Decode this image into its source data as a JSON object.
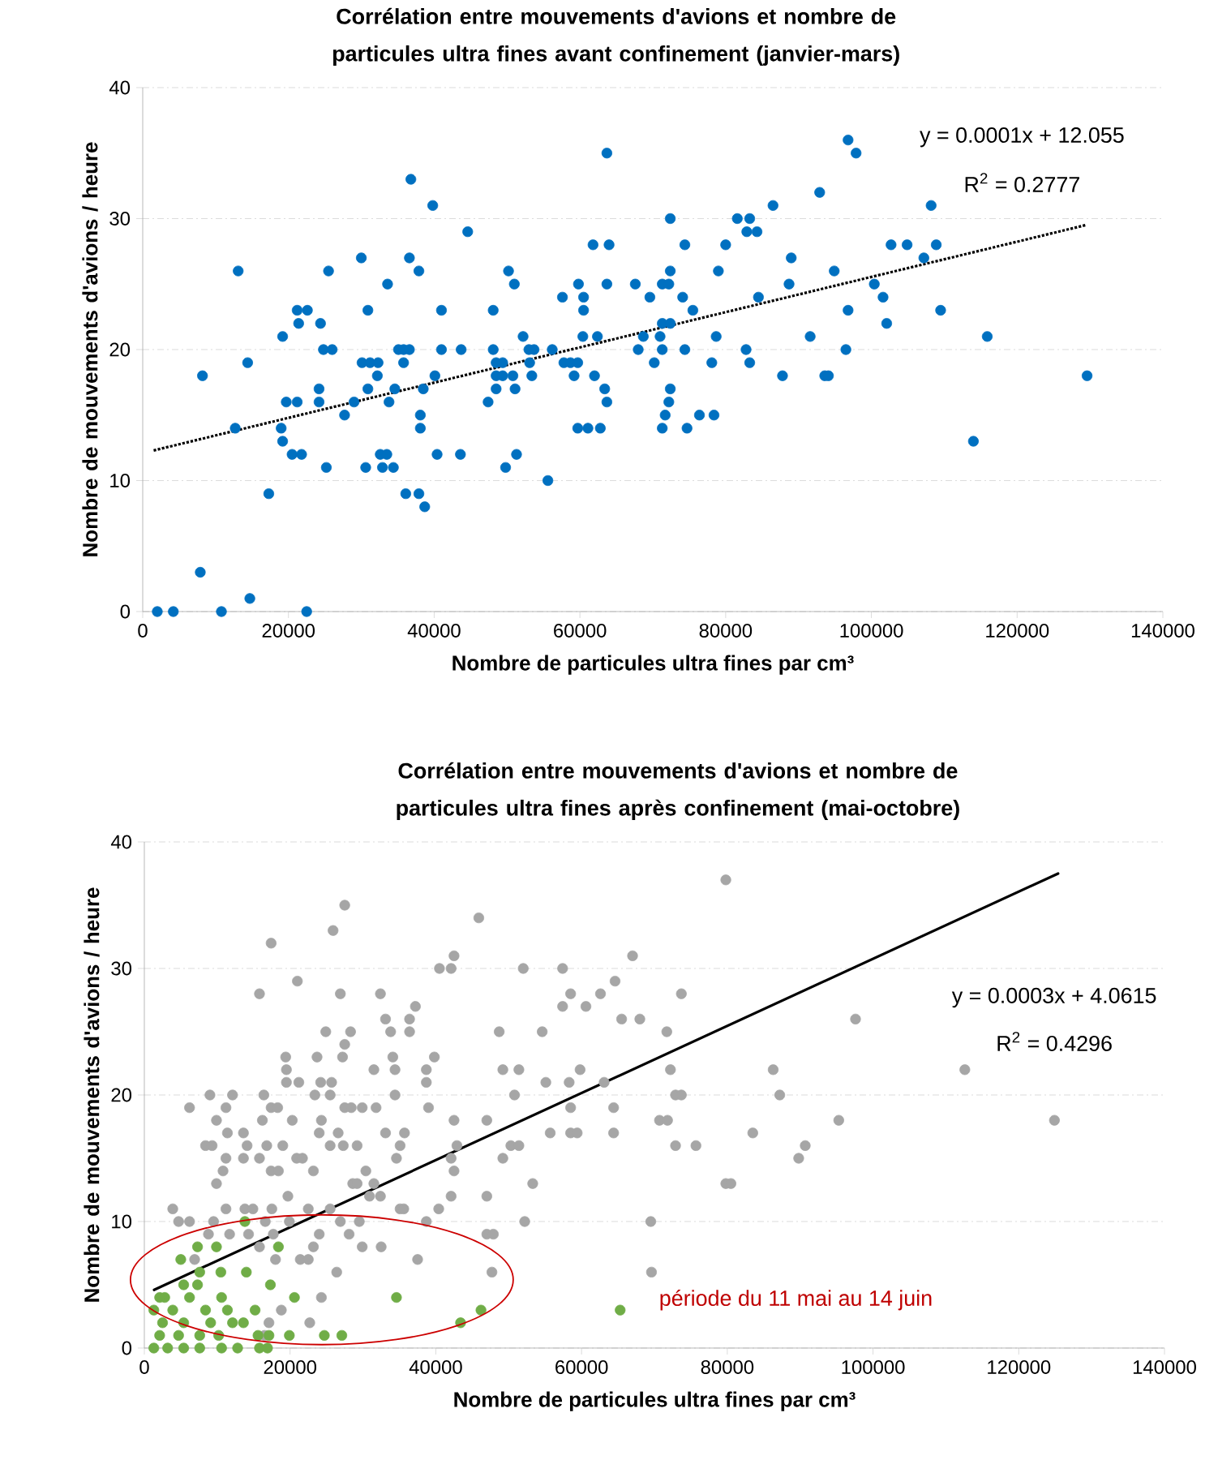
{
  "chart_data": [
    {
      "type": "scatter",
      "title": "Corrélation entre mouvements d'avions et nombre de particules ultra fines avant confinement (janvier-mars)",
      "xlabel": "Nombre de particules ultra fines par cm³",
      "ylabel": "Nombre de mouvements d'avions / heure",
      "xlim": [
        0,
        140000
      ],
      "ylim": [
        0,
        40
      ],
      "xticks": [
        0,
        20000,
        40000,
        60000,
        80000,
        100000,
        120000,
        140000
      ],
      "yticks": [
        0,
        10,
        20,
        30,
        40
      ],
      "grid": "y",
      "marker": "circle",
      "annotations": [
        "y = 0.0001x + 12.055",
        "R$^{2}$ = 0.2777"
      ],
      "series": [
        {
          "color": "#0070c0",
          "x": [
            2000,
            4200,
            7900,
            8200,
            10800,
            13100,
            12700,
            14400,
            14700,
            17300,
            19200,
            19000,
            19200,
            19700,
            21200,
            20500,
            21800,
            21200,
            22600,
            21400,
            22500,
            24400,
            24800,
            26000,
            24200,
            24200,
            25500,
            25200,
            27700,
            29000,
            30000,
            30600,
            30900,
            30100,
            31200,
            32300,
            30900,
            32200,
            33600,
            32600,
            33500,
            32900,
            34400,
            33800,
            34600,
            35100,
            35800,
            36600,
            35800,
            36100,
            37900,
            36600,
            36800,
            37900,
            38100,
            38100,
            38500,
            38700,
            39800,
            40100,
            40400,
            41000,
            41000,
            43700,
            43600,
            44600,
            47400,
            48100,
            48100,
            48500,
            49400,
            48500,
            49400,
            48500,
            49800,
            50200,
            51000,
            50800,
            51100,
            51300,
            52200,
            53000,
            53700,
            53100,
            53400,
            55600,
            56200,
            57600,
            57800,
            58700,
            59700,
            59200,
            59700,
            61100,
            62800,
            59800,
            60500,
            60500,
            60400,
            62400,
            61800,
            64000,
            63700,
            63700,
            62000,
            63400,
            63700,
            67600,
            68000,
            68700,
            69600,
            70200,
            71300,
            72200,
            71300,
            71700,
            72200,
            72400,
            72400,
            72400,
            71300,
            72400,
            71000,
            71300,
            74400,
            74400,
            74100,
            75500,
            74700,
            76400,
            78400,
            78100,
            78700,
            79000,
            80000,
            81600,
            83300,
            82900,
            84300,
            82800,
            83300,
            84500,
            86500,
            87800,
            88700,
            89000,
            91600,
            92900,
            93600,
            94100,
            94900,
            96500,
            96800,
            96800,
            97900,
            100400,
            101600,
            102100,
            102700,
            104900,
            107200,
            108200,
            108900,
            109500,
            114000,
            115900,
            129600
          ],
          "values": [
            0,
            0,
            3,
            18,
            0,
            26,
            14,
            19,
            1,
            9,
            21,
            14,
            13,
            16,
            16,
            12,
            12,
            23,
            23,
            22,
            0,
            22,
            20,
            20,
            17,
            16,
            26,
            11,
            15,
            16,
            27,
            11,
            23,
            19,
            19,
            19,
            17,
            18,
            25,
            12,
            12,
            11,
            11,
            16,
            17,
            20,
            20,
            20,
            19,
            9,
            9,
            27,
            33,
            26,
            15,
            14,
            17,
            8,
            31,
            18,
            12,
            23,
            20,
            20,
            12,
            29,
            16,
            23,
            20,
            19,
            19,
            18,
            18,
            17,
            11,
            26,
            25,
            18,
            17,
            12,
            21,
            20,
            20,
            19,
            18,
            10,
            20,
            24,
            19,
            19,
            19,
            18,
            14,
            14,
            14,
            25,
            24,
            23,
            21,
            21,
            28,
            28,
            35,
            25,
            18,
            17,
            16,
            25,
            20,
            21,
            24,
            19,
            25,
            25,
            14,
            15,
            16,
            17,
            30,
            26,
            22,
            22,
            21,
            20,
            28,
            20,
            24,
            23,
            14,
            15,
            15,
            19,
            21,
            26,
            28,
            30,
            30,
            29,
            29,
            20,
            19,
            24,
            31,
            18,
            25,
            27,
            21,
            32,
            18,
            18,
            26,
            20,
            23,
            36,
            35,
            25,
            24,
            22,
            28,
            28,
            27,
            31,
            28,
            23,
            13,
            21,
            18
          ]
        },
        {
          "type": "line",
          "color": "#000000",
          "line_style": "dotted",
          "marker": "none",
          "x": [
            1500,
            129400
          ],
          "values": [
            12.3,
            29.5
          ]
        }
      ]
    },
    {
      "type": "scatter",
      "title": "Corrélation entre mouvements d'avions et nombre de particules ultra fines après confinement (mai-octobre)",
      "xlabel": "Nombre de particules ultra fines par cm³",
      "ylabel": "Nombre de mouvements d'avions / heure",
      "xlim": [
        0,
        140000
      ],
      "ylim": [
        0,
        40
      ],
      "xticks": [
        0,
        20000,
        40000,
        60000,
        80000,
        100000,
        120000,
        140000
      ],
      "yticks": [
        0,
        10,
        20,
        30,
        40
      ],
      "grid": "y",
      "marker": "circle",
      "annotations": [
        "y = 0.0003x + 4.0615",
        "R$^{2}$ = 0.4296",
        "période du 11 mai au 14 juin"
      ],
      "series": [
        {
          "color": "#a6a6a6",
          "x": [
            27500,
            45900,
            25900,
            17400,
            42500,
            67000,
            40500,
            42100,
            52000,
            57400,
            21000,
            64600,
            15800,
            26900,
            32400,
            58500,
            62600,
            73700,
            37200,
            60600,
            57400,
            33100,
            36400,
            65500,
            68000,
            24900,
            28300,
            33800,
            36400,
            48700,
            54600,
            71700,
            27500,
            19400,
            23700,
            27200,
            34100,
            39800,
            19500,
            31500,
            34400,
            38700,
            49200,
            51400,
            59800,
            72200,
            19500,
            21200,
            24200,
            25700,
            38700,
            55100,
            58300,
            63100,
            9000,
            12100,
            16400,
            23400,
            25500,
            34400,
            50800,
            72900,
            6200,
            11200,
            17400,
            18300,
            27500,
            28400,
            29900,
            31800,
            39000,
            58500,
            64400,
            9900,
            16200,
            20300,
            24300,
            42500,
            47000,
            70700,
            71800,
            11400,
            13600,
            24000,
            26600,
            33100,
            35700,
            55700,
            58500,
            59400,
            64400,
            8400,
            9300,
            14100,
            16800,
            19000,
            25500,
            27300,
            29200,
            35100,
            42900,
            50300,
            51400,
            72900,
            11200,
            13600,
            15800,
            20900,
            21700,
            34600,
            42100,
            49200,
            10800,
            17400,
            18400,
            23200,
            30400,
            42500,
            9900,
            28600,
            29200,
            31500,
            53300,
            19700,
            30900,
            32400,
            42100,
            47000,
            3900,
            11200,
            13800,
            14900,
            17500,
            22500,
            25500,
            35100,
            35600,
            40400,
            4700,
            6200,
            9500,
            16600,
            19900,
            26900,
            29500,
            38700,
            52200,
            69500,
            8800,
            11700,
            14300,
            17700,
            24000,
            28100,
            47000,
            47900,
            15800,
            23200,
            29900,
            32500,
            6900,
            18000,
            21400,
            22500,
            37500,
            26400,
            69600,
            47700,
            24300,
            18800,
            22700,
            17100,
            16500,
            79800,
            97600,
            86300,
            112600,
            73700,
            87200,
            95300,
            124900,
            83500,
            75700,
            90700,
            89800,
            79800,
            80500
          ],
          "values": [
            35,
            34,
            33,
            32,
            31,
            31,
            30,
            30,
            30,
            30,
            29,
            29,
            28,
            28,
            28,
            28,
            28,
            28,
            27,
            27,
            27,
            26,
            26,
            26,
            26,
            25,
            25,
            25,
            25,
            25,
            25,
            25,
            24,
            23,
            23,
            23,
            23,
            23,
            22,
            22,
            22,
            22,
            22,
            22,
            22,
            22,
            21,
            21,
            21,
            21,
            21,
            21,
            21,
            21,
            20,
            20,
            20,
            20,
            20,
            20,
            20,
            20,
            19,
            19,
            19,
            19,
            19,
            19,
            19,
            19,
            19,
            19,
            19,
            18,
            18,
            18,
            18,
            18,
            18,
            18,
            18,
            17,
            17,
            17,
            17,
            17,
            17,
            17,
            17,
            17,
            17,
            16,
            16,
            16,
            16,
            16,
            16,
            16,
            16,
            16,
            16,
            16,
            16,
            16,
            15,
            15,
            15,
            15,
            15,
            15,
            15,
            15,
            14,
            14,
            14,
            14,
            14,
            14,
            13,
            13,
            13,
            13,
            13,
            12,
            12,
            12,
            12,
            12,
            11,
            11,
            11,
            11,
            11,
            11,
            11,
            11,
            11,
            11,
            10,
            10,
            10,
            10,
            10,
            10,
            10,
            10,
            10,
            10,
            9,
            9,
            9,
            9,
            9,
            9,
            9,
            9,
            8,
            8,
            8,
            8,
            7,
            7,
            7,
            7,
            7,
            6,
            6,
            6,
            4,
            3,
            2,
            2,
            1,
            37,
            26,
            22,
            22,
            20,
            20,
            18,
            18,
            17,
            16,
            16,
            15,
            13,
            13
          ]
        },
        {
          "color": "#70ad47",
          "x": [
            13800,
            18400,
            7300,
            5000,
            9900,
            10500,
            14000,
            17300,
            5400,
            7300,
            7600,
            20600,
            34600,
            2800,
            6200,
            10600,
            46200,
            15200,
            3900,
            8400,
            11400,
            43400,
            13600,
            2500,
            5400,
            9100,
            12100,
            15600,
            17100,
            19900,
            24700,
            27100,
            2100,
            4700,
            7600,
            10200,
            1300,
            3200,
            5400,
            7600,
            10600,
            12800,
            15800,
            16900,
            65300,
            1300,
            2100
          ],
          "values": [
            10,
            8,
            8,
            7,
            8,
            6,
            6,
            5,
            5,
            5,
            6,
            4,
            4,
            4,
            4,
            4,
            3,
            3,
            3,
            3,
            3,
            2,
            2,
            2,
            2,
            2,
            2,
            1,
            1,
            1,
            1,
            1,
            1,
            1,
            1,
            1,
            0,
            0,
            0,
            0,
            0,
            0,
            0,
            0,
            3,
            3,
            4
          ]
        },
        {
          "type": "line",
          "color": "#000000",
          "line_style": "solid",
          "marker": "none",
          "x": [
            1340,
            125400
          ],
          "values": [
            4.6,
            37.5
          ]
        }
      ]
    }
  ]
}
